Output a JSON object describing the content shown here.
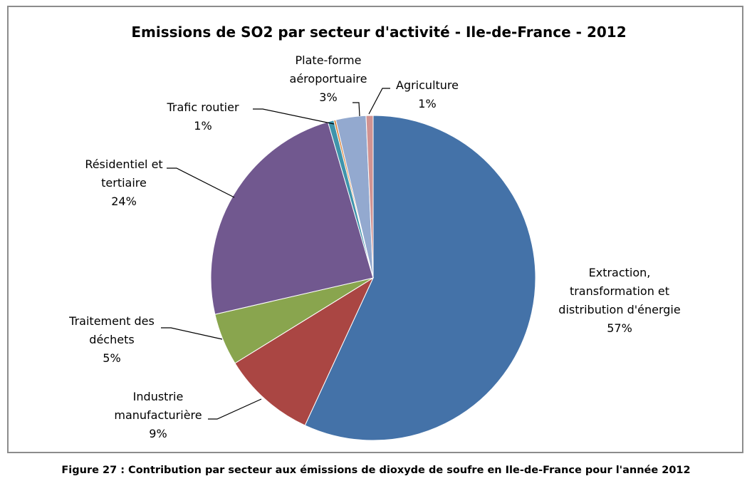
{
  "chart_data": {
    "type": "pie",
    "title": "Emissions de SO2 par secteur d'activité - Ile-de-France - 2012",
    "start_angle_deg": 0,
    "direction": "clockwise",
    "slices": [
      {
        "label_lines": [
          "Extraction,",
          "transformation et",
          "distribution d'énergie"
        ],
        "value_label": "57%",
        "value": 56.9,
        "color": "#4472a8"
      },
      {
        "label_lines": [
          "Industrie",
          "manufacturière"
        ],
        "value_label": "9%",
        "value": 9.3,
        "color": "#aa4643"
      },
      {
        "label_lines": [
          "Traitement des",
          "déchets"
        ],
        "value_label": "5%",
        "value": 5.2,
        "color": "#89a54e"
      },
      {
        "label_lines": [
          "Résidentiel et",
          "tertiaire"
        ],
        "value_label": "24%",
        "value": 24.1,
        "color": "#71588f"
      },
      {
        "label_lines": [
          "Trafic routier"
        ],
        "value_label": "1%",
        "value": 0.6,
        "color": "#3f94ab"
      },
      {
        "label_lines": [],
        "value_label": "",
        "value": 0.2,
        "color": "#db843d"
      },
      {
        "label_lines": [
          "Plate-forme",
          "aéroportuaire"
        ],
        "value_label": "3%",
        "value": 3.0,
        "color": "#93a9cf"
      },
      {
        "label_lines": [
          "Agriculture"
        ],
        "value_label": "1%",
        "value": 0.7,
        "color": "#d19392"
      }
    ]
  },
  "caption": "Figure 27 : Contribution par secteur aux émissions de dioxyde de soufre en Ile-de-France pour l'année 2012"
}
